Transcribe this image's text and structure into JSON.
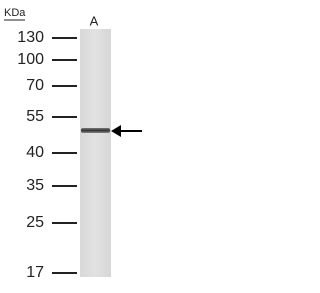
{
  "header": {
    "unit": "KDa",
    "lane": "A"
  },
  "markers": [
    "130",
    "100",
    "70",
    "55",
    "40",
    "35",
    "25",
    "17"
  ]
}
